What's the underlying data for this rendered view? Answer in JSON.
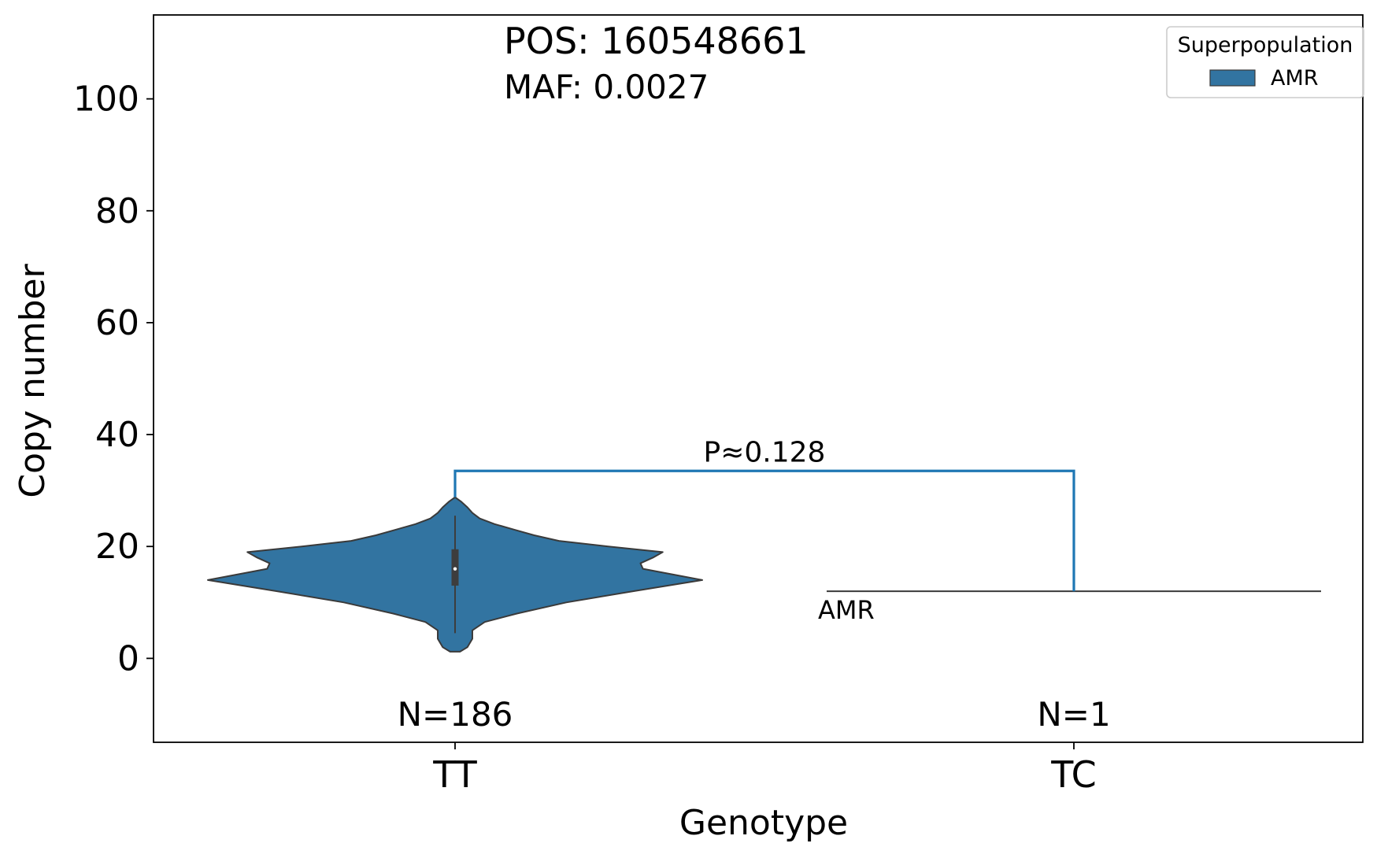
{
  "chart_data": {
    "type": "violin",
    "annotation_lines": [
      "POS: 160548661",
      "MAF: 0.0027"
    ],
    "xlabel": "Genotype",
    "ylabel": "Copy number",
    "categories": [
      "TT",
      "TC"
    ],
    "ylim": [
      -15,
      115
    ],
    "yticks": [
      0,
      20,
      40,
      60,
      80,
      100
    ],
    "legend": {
      "title": "Superpopulation",
      "entries": [
        {
          "name": "AMR",
          "color": "#3274a1"
        }
      ],
      "position": "top-right"
    },
    "series": [
      {
        "name": "AMR",
        "color": "#3274a1",
        "groups": [
          {
            "category": "TT",
            "n_label": "N=186",
            "box": {
              "q1": 13,
              "median": 16,
              "q3": 19.5,
              "whisker_low": 4.5,
              "whisker_high": 25.5
            },
            "density": [
              [
                1.2,
                0.02
              ],
              [
                2,
                0.05
              ],
              [
                3.5,
                0.07
              ],
              [
                5,
                0.07
              ],
              [
                6.5,
                0.12
              ],
              [
                8,
                0.25
              ],
              [
                10,
                0.45
              ],
              [
                12,
                0.72
              ],
              [
                13,
                0.86
              ],
              [
                14,
                1.0
              ],
              [
                15,
                0.88
              ],
              [
                16,
                0.76
              ],
              [
                17,
                0.75
              ],
              [
                18,
                0.8
              ],
              [
                19,
                0.84
              ],
              [
                20,
                0.62
              ],
              [
                21,
                0.42
              ],
              [
                22,
                0.32
              ],
              [
                23,
                0.24
              ],
              [
                24,
                0.16
              ],
              [
                25,
                0.1
              ],
              [
                26,
                0.07
              ],
              [
                27,
                0.05
              ],
              [
                28,
                0.025
              ],
              [
                28.8,
                0.0
              ]
            ]
          },
          {
            "category": "TC",
            "n_label": "N=1",
            "single_value": 12,
            "point_label": "AMR"
          }
        ]
      }
    ],
    "comparison": {
      "between": [
        "TT",
        "TC"
      ],
      "label": "P≈0.128",
      "y_bracket": 33.5,
      "color": "#1f77b4"
    }
  }
}
